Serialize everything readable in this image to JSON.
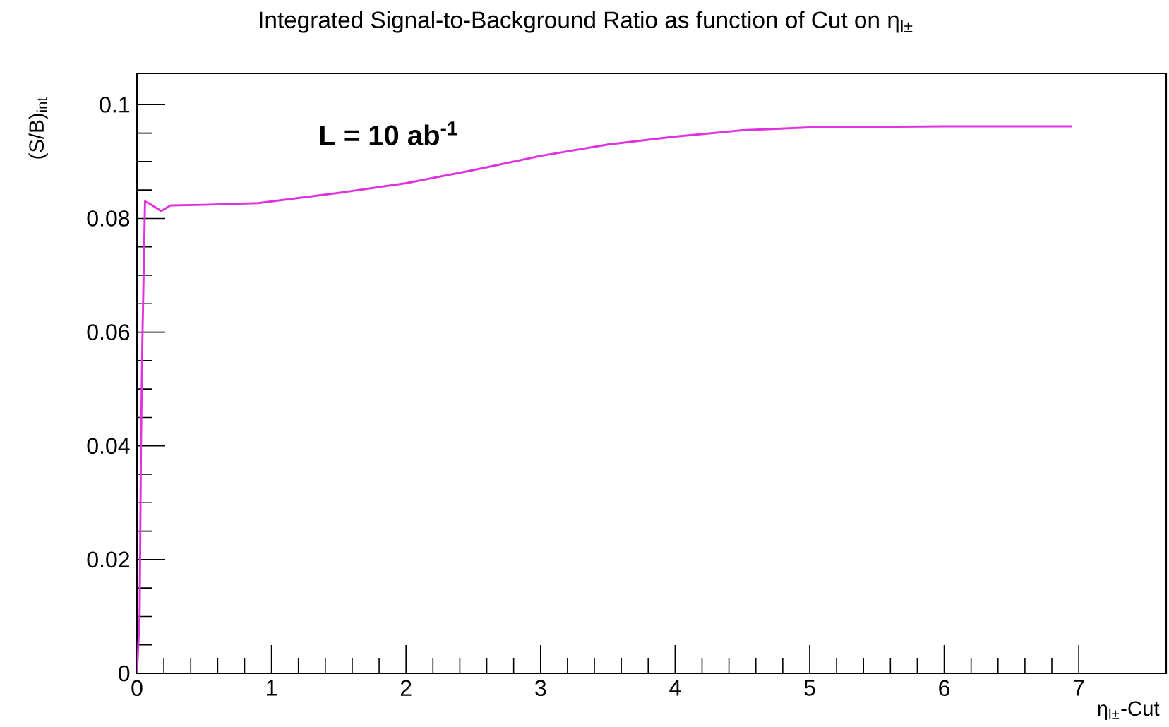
{
  "chart_data": {
    "type": "line",
    "title": "Integrated Signal-to-Background Ratio as function of Cut on η$_{l±}$",
    "xlabel": "η$_{l±}$-Cut",
    "ylabel": "(S/B)$_{int}$",
    "annotations": [
      "L = 10 ab$^{-1}$"
    ],
    "x": [
      0,
      0.02,
      0.03,
      0.04,
      0.06,
      0.1,
      0.18,
      0.25,
      0.5,
      0.9,
      1.5,
      2,
      2.5,
      3,
      3.5,
      4,
      4.5,
      5,
      5.5,
      6,
      6.5,
      6.95
    ],
    "series": [
      {
        "color": "#e033e0",
        "values": [
          0,
          0.01,
          0.04,
          0.058,
          0.083,
          0.0825,
          0.0813,
          0.0823,
          0.0824,
          0.0827,
          0.0845,
          0.0862,
          0.0885,
          0.091,
          0.093,
          0.0944,
          0.0955,
          0.096,
          0.0961,
          0.0962,
          0.0962,
          0.0962
        ]
      }
    ],
    "xlim": [
      0,
      7.65
    ],
    "ylim": [
      0,
      0.1055
    ],
    "xticks": [
      0,
      1,
      2,
      3,
      4,
      5,
      6,
      7
    ],
    "yticks": [
      0,
      0.02,
      0.04,
      0.06,
      0.08,
      0.1
    ],
    "grid": false,
    "marker": "none",
    "line_style": "solid"
  }
}
